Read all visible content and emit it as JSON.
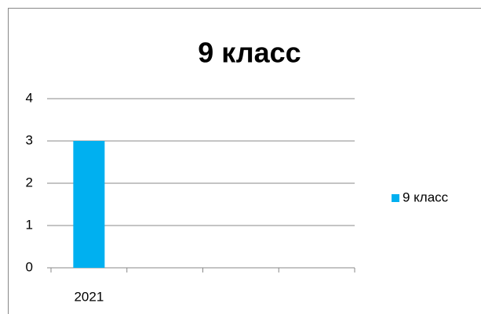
{
  "chart_data": {
    "type": "bar",
    "title": "9 класс",
    "categories": [
      "2021",
      null,
      null,
      null
    ],
    "series": [
      {
        "name": "9 класс",
        "color": "#00b0f0",
        "values": [
          3,
          null,
          null,
          null
        ]
      }
    ],
    "ylim": [
      0,
      4
    ],
    "yticks": [
      0,
      1,
      2,
      3,
      4
    ],
    "grid": true,
    "legend": "right"
  }
}
